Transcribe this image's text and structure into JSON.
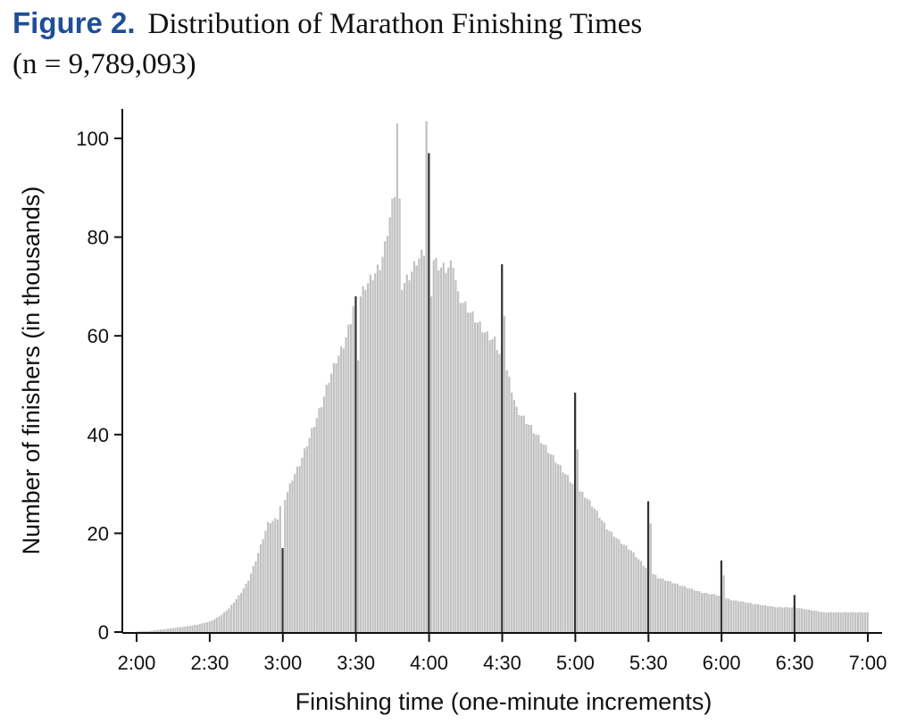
{
  "figure": {
    "label": "Figure 2.",
    "title": "Distribution of Marathon Finishing Times",
    "subtitle": "(n = 9,789,093)"
  },
  "chart_data": {
    "type": "bar",
    "xlabel": "Finishing time (one-minute increments)",
    "ylabel": "Number of finishers (in thousands)",
    "x_range_minutes": [
      120,
      420
    ],
    "ylim": [
      0,
      105
    ],
    "x_ticks": [
      "2:00",
      "2:30",
      "3:00",
      "3:30",
      "4:00",
      "4:30",
      "5:00",
      "5:30",
      "6:00",
      "6:30",
      "7:00"
    ],
    "y_ticks": [
      0,
      20,
      40,
      60,
      80,
      100
    ],
    "bar_color": "#c2c2c2",
    "highlight_color": "#333333",
    "grid": false,
    "anchors": [
      [
        120,
        0.1
      ],
      [
        125,
        0.2
      ],
      [
        130,
        0.5
      ],
      [
        135,
        0.8
      ],
      [
        140,
        1.1
      ],
      [
        145,
        1.5
      ],
      [
        150,
        2.1
      ],
      [
        152,
        2.6
      ],
      [
        155,
        3.5
      ],
      [
        158,
        4.8
      ],
      [
        160,
        6
      ],
      [
        163,
        8
      ],
      [
        166,
        10.5
      ],
      [
        169,
        14.5
      ],
      [
        171,
        17.5
      ],
      [
        173,
        20.5
      ],
      [
        174,
        22
      ],
      [
        178,
        23
      ],
      [
        181,
        27
      ],
      [
        184,
        31
      ],
      [
        187,
        34
      ],
      [
        190,
        38
      ],
      [
        193,
        42
      ],
      [
        196,
        46
      ],
      [
        199,
        51
      ],
      [
        202,
        55
      ],
      [
        205,
        58
      ],
      [
        208,
        63
      ],
      [
        211,
        67
      ],
      [
        214,
        70
      ],
      [
        217,
        72
      ],
      [
        220,
        74
      ],
      [
        222,
        78
      ],
      [
        224,
        84
      ],
      [
        226,
        89
      ],
      [
        227,
        103
      ],
      [
        229,
        70
      ],
      [
        232,
        72
      ],
      [
        235,
        75
      ],
      [
        238,
        77
      ],
      [
        241,
        76
      ],
      [
        244,
        74
      ],
      [
        247,
        73.5
      ],
      [
        250,
        74.5
      ],
      [
        252,
        68
      ],
      [
        255,
        66
      ],
      [
        258,
        64
      ],
      [
        261,
        62
      ],
      [
        264,
        60
      ],
      [
        267,
        59
      ],
      [
        270,
        55
      ],
      [
        272,
        53
      ],
      [
        276,
        45
      ],
      [
        281,
        42
      ],
      [
        287,
        38
      ],
      [
        293,
        34
      ],
      [
        299,
        30
      ],
      [
        305,
        27
      ],
      [
        308,
        25
      ],
      [
        313,
        21
      ],
      [
        318,
        18.5
      ],
      [
        323,
        16.5
      ],
      [
        329,
        13
      ],
      [
        334,
        11
      ],
      [
        340,
        10
      ],
      [
        346,
        9
      ],
      [
        352,
        8
      ],
      [
        358,
        7.5
      ],
      [
        364,
        6.5
      ],
      [
        370,
        6
      ],
      [
        376,
        5.5
      ],
      [
        383,
        5
      ],
      [
        390,
        5
      ],
      [
        396,
        4.5
      ],
      [
        402,
        4
      ],
      [
        410,
        4
      ],
      [
        420,
        4
      ]
    ],
    "spikes": [
      {
        "minute": 179,
        "value": 25.5
      },
      {
        "minute": 180,
        "value": 17
      },
      {
        "minute": 209,
        "value": 66
      },
      {
        "minute": 210,
        "value": 68
      },
      {
        "minute": 211,
        "value": 55
      },
      {
        "minute": 239,
        "value": 103.5
      },
      {
        "minute": 240,
        "value": 97
      },
      {
        "minute": 241,
        "value": 68
      },
      {
        "minute": 270,
        "value": 74.5
      },
      {
        "minute": 271,
        "value": 64
      },
      {
        "minute": 300,
        "value": 48.5
      },
      {
        "minute": 301,
        "value": 37
      },
      {
        "minute": 330,
        "value": 26.5
      },
      {
        "minute": 331,
        "value": 22
      },
      {
        "minute": 360,
        "value": 14.5
      },
      {
        "minute": 361,
        "value": 11.5
      },
      {
        "minute": 390,
        "value": 7.5
      }
    ],
    "highlight_minutes": [
      180,
      210,
      240,
      270,
      300,
      330,
      360,
      390
    ]
  }
}
